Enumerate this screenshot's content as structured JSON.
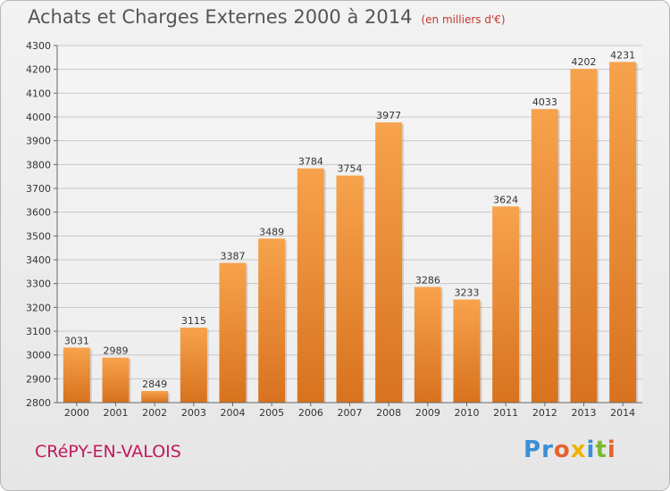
{
  "header": {
    "title": "Achats et Charges Externes 2000 à 2014",
    "subtitle": "(en milliers d'€)"
  },
  "footer": {
    "place": "CRéPY-EN-VALOIS",
    "logo_letters": [
      "P",
      "r",
      "o",
      "x",
      "i",
      "t",
      "i"
    ],
    "logo_colors": [
      "#3a8fd6",
      "#3a8fd6",
      "#e8612c",
      "#f0b400",
      "#3a8fd6",
      "#7cb82f",
      "#e8612c"
    ]
  },
  "chart_data": {
    "type": "bar",
    "categories": [
      "2000",
      "2001",
      "2002",
      "2003",
      "2004",
      "2005",
      "2006",
      "2007",
      "2008",
      "2009",
      "2010",
      "2011",
      "2012",
      "2013",
      "2014"
    ],
    "values": [
      3031,
      2989,
      2849,
      3115,
      3387,
      3489,
      3784,
      3754,
      3977,
      3286,
      3233,
      3624,
      4033,
      4202,
      4231
    ],
    "data_labels": [
      "3031",
      "2989",
      "2849",
      "3115",
      "3387",
      "3489",
      "3784",
      "3754",
      "3977",
      "3286",
      "3233",
      "3624",
      "4033",
      "4202",
      "4231"
    ],
    "yticks": [
      "2800",
      "2900",
      "3000",
      "3100",
      "3200",
      "3300",
      "3400",
      "3500",
      "3600",
      "3700",
      "3800",
      "3900",
      "4000",
      "4100",
      "4200",
      "4300"
    ],
    "ylim": [
      2800,
      4300
    ],
    "grid": true,
    "bar_color_top": "#f7a24c",
    "bar_color_bottom": "#d8721e"
  }
}
